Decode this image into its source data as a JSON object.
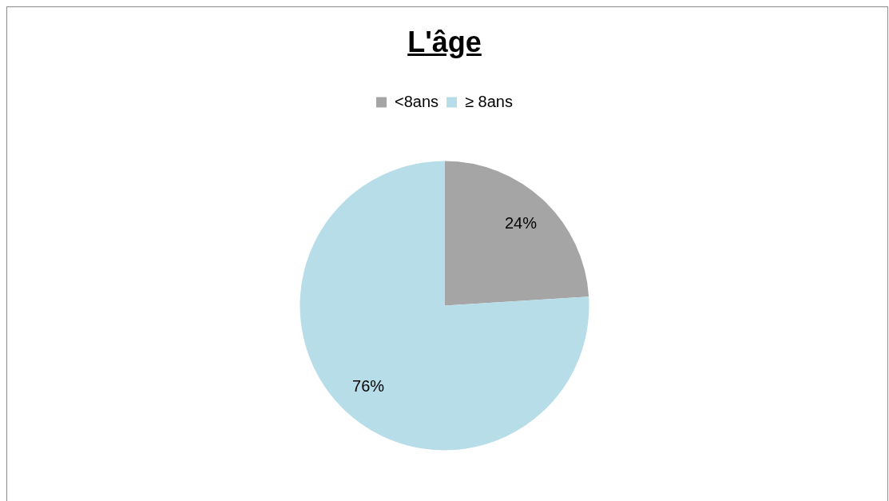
{
  "chart_data": {
    "type": "pie",
    "title": "L'âge",
    "categories": [
      "<8ans",
      "≥ 8ans"
    ],
    "values": [
      24,
      76
    ],
    "colors": [
      "#a5a5a5",
      "#b7dde8"
    ],
    "value_labels": [
      "24%",
      "76%"
    ],
    "legend": "top"
  }
}
